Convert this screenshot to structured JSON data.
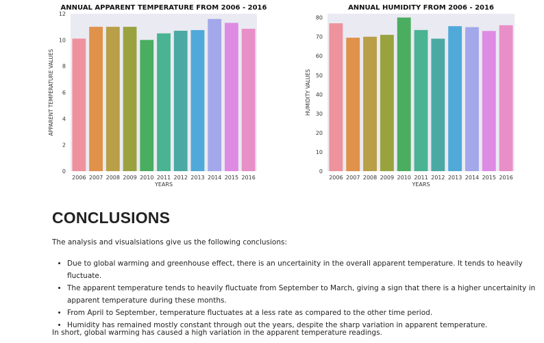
{
  "chart_data": [
    {
      "type": "bar",
      "title": "ANNUAL APPARENT TEMPERATURE FROM 2006 - 2016",
      "xlabel": "YEARS",
      "ylabel": "APPARENT TEMPERATURE VALUES",
      "categories": [
        "2006",
        "2007",
        "2008",
        "2009",
        "2010",
        "2011",
        "2012",
        "2013",
        "2014",
        "2015",
        "2016"
      ],
      "values": [
        10.1,
        11.0,
        11.0,
        11.0,
        10.0,
        10.5,
        10.7,
        10.75,
        11.6,
        11.3,
        10.85
      ],
      "ylim": [
        0,
        12
      ],
      "yticks": [
        0,
        2,
        4,
        6,
        8,
        10,
        12
      ],
      "colors": [
        "#ee929d",
        "#e0914a",
        "#b89f48",
        "#9aa23f",
        "#4aad5f",
        "#4ab391",
        "#4ba9a4",
        "#50a9d8",
        "#a3a8ea",
        "#de8be3",
        "#e98fc8"
      ],
      "grid": false
    },
    {
      "type": "bar",
      "title": "ANNUAL HUMIDITY FROM 2006 - 2016",
      "xlabel": "YEARS",
      "ylabel": "HUMIDITY VALUES",
      "categories": [
        "2006",
        "2007",
        "2008",
        "2009",
        "2010",
        "2011",
        "2012",
        "2013",
        "2014",
        "2015",
        "2016"
      ],
      "values": [
        77,
        69.5,
        70,
        71,
        80,
        73.5,
        69,
        75.5,
        75,
        73,
        76
      ],
      "ylim": [
        0,
        82
      ],
      "yticks": [
        0,
        10,
        20,
        30,
        40,
        50,
        60,
        70,
        80
      ],
      "colors": [
        "#ee929d",
        "#e0914a",
        "#b89f48",
        "#9aa23f",
        "#4aad5f",
        "#4ab391",
        "#4ba9a4",
        "#50a9d8",
        "#a3a8ea",
        "#de8be3",
        "#e98fc8"
      ],
      "grid": false
    }
  ],
  "conclusions": {
    "heading": "CONCLUSIONS",
    "intro": "The analysis and visualsiations give us the following conclusions:",
    "bullets": [
      "Due to global warming and greenhouse effect, there is an uncertainity in the overall apparent temperature. It tends to heavily fluctuate.",
      "The apparent temperature tends to heavily fluctuate from September to March, giving a sign that there is a higher uncertainity in apparent temperature during these months.",
      "From April to September, temperature fluctuates at a less rate as compared to the other time period.",
      "Humidity has remained mostly constant through out the years, despite the sharp variation in apparent temperature."
    ],
    "closing": "In short, global warming has caused a high variation in the apparent temperature readings."
  }
}
